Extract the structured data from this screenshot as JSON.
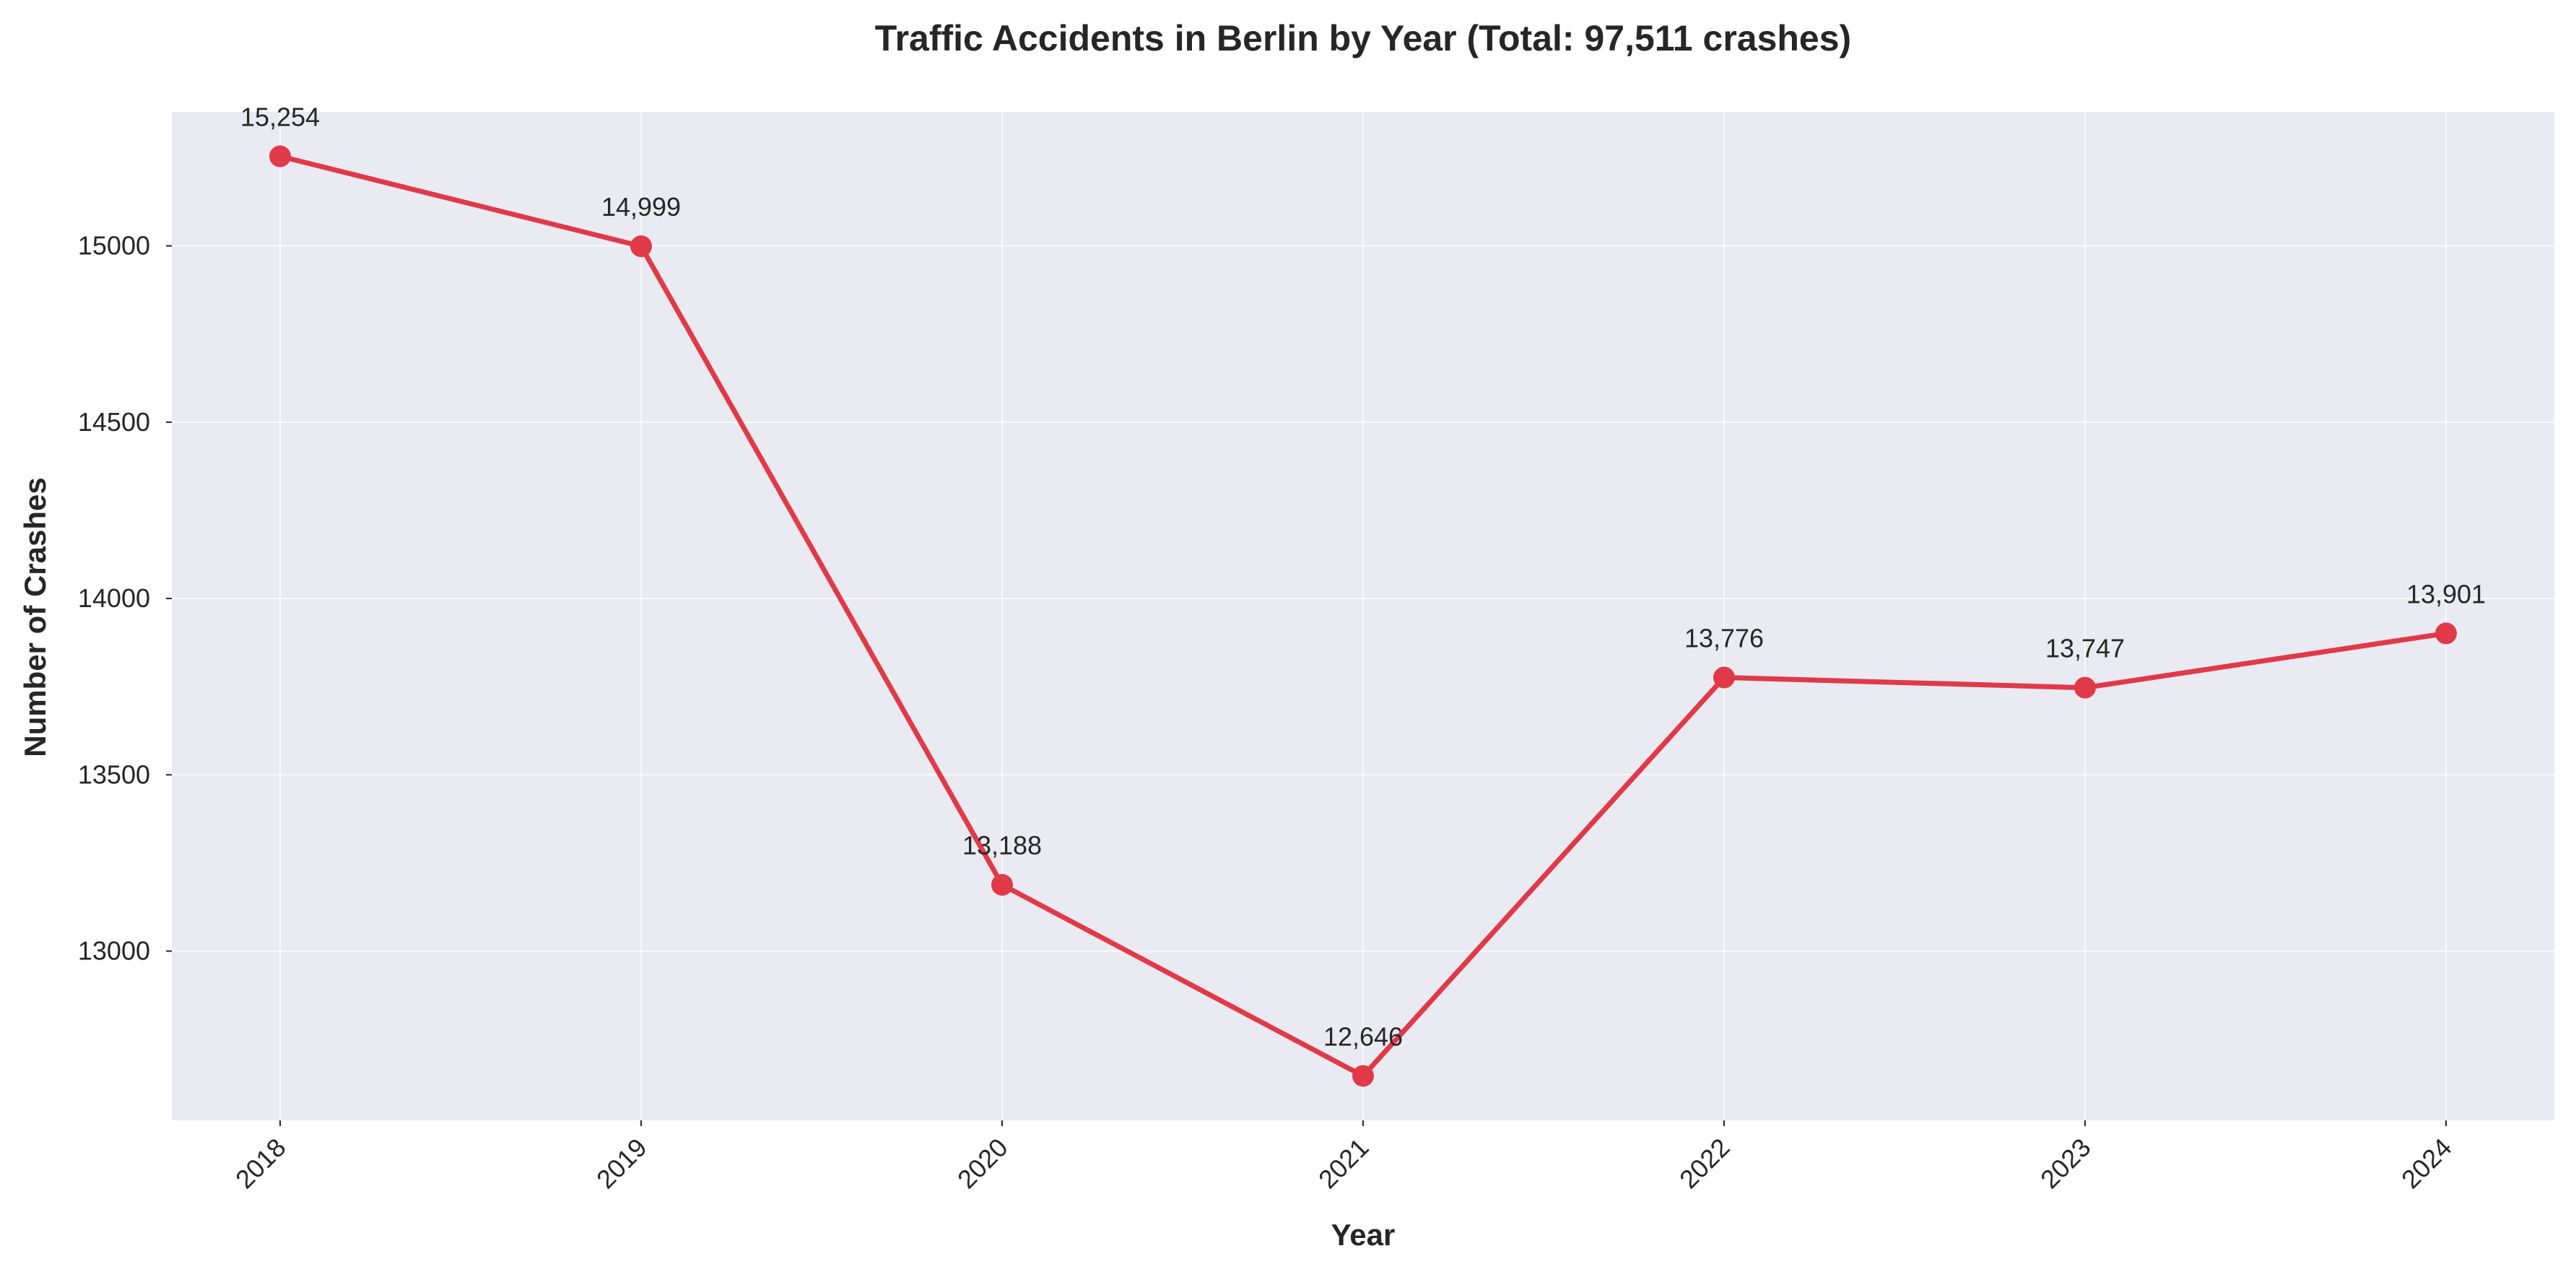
{
  "chart_data": {
    "type": "line",
    "title": "Traffic Accidents in Berlin by Year (Total: 97,511 crashes)",
    "xlabel": "Year",
    "ylabel": "Number of Crashes",
    "categories": [
      "2018",
      "2019",
      "2020",
      "2021",
      "2022",
      "2023",
      "2024"
    ],
    "series": [
      {
        "values": [
          15254,
          14999,
          13188,
          12646,
          13776,
          13747,
          13901
        ]
      }
    ],
    "data_labels": [
      "15,254",
      "14,999",
      "13,188",
      "12,646",
      "13,776",
      "13,747",
      "13,901"
    ],
    "yticks": [
      13000,
      13500,
      14000,
      14500,
      15000
    ],
    "ylim": [
      12520,
      15380
    ],
    "grid": true,
    "legend": "none",
    "colors": {
      "line": "#e03a48",
      "plot_background": "#eaeaf2",
      "text": "#262626"
    }
  }
}
